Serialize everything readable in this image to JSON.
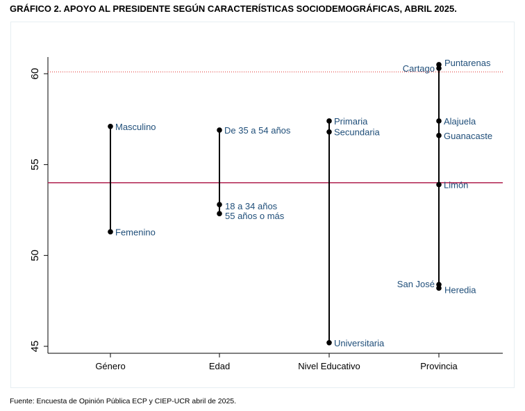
{
  "title": "GRÁFICO 2. APOYO AL PRESIDENTE SEGÚN CARACTERÍSTICAS SOCIODEMOGRÁFICAS, ABRIL 2025.",
  "source": "Fuente: Encuesta de Opinión Pública ECP y CIEP-UCR abril de 2025.",
  "colors": {
    "mean_line": "#b0214f",
    "ref_line": "#e0302f",
    "label": "#1f4e79",
    "marker": "#000000"
  },
  "chart_data": {
    "type": "scatter",
    "ylim": [
      44.3,
      61
    ],
    "yticks": [
      "45",
      "50",
      "55",
      "60"
    ],
    "categories": [
      "Género",
      "Edad",
      "Nivel Educativo",
      "Provincia"
    ],
    "mean_line": 54.0,
    "reference_line": 60.1,
    "groups": [
      {
        "category": "Género",
        "points": [
          {
            "label": "Masculino",
            "value": 57.1
          },
          {
            "label": "Femenino",
            "value": 51.3
          }
        ]
      },
      {
        "category": "Edad",
        "points": [
          {
            "label": "De 35 a 54 años",
            "value": 56.9
          },
          {
            "label": "18 a 34 años",
            "value": 52.8
          },
          {
            "label": "55 años o más",
            "value": 52.3
          }
        ]
      },
      {
        "category": "Nivel Educativo",
        "points": [
          {
            "label": "Primaria",
            "value": 57.4
          },
          {
            "label": "Secundaria",
            "value": 56.8
          },
          {
            "label": "Universitaria",
            "value": 45.2
          }
        ]
      },
      {
        "category": "Provincia",
        "points": [
          {
            "label": "Puntarenas",
            "value": 60.5
          },
          {
            "label": "Cartago",
            "value": 60.3
          },
          {
            "label": "Alajuela",
            "value": 57.4
          },
          {
            "label": "Guanacaste",
            "value": 56.6
          },
          {
            "label": "Limón",
            "value": 53.9
          },
          {
            "label": "San José",
            "value": 48.4
          },
          {
            "label": "Heredia",
            "value": 48.2
          }
        ]
      }
    ]
  }
}
